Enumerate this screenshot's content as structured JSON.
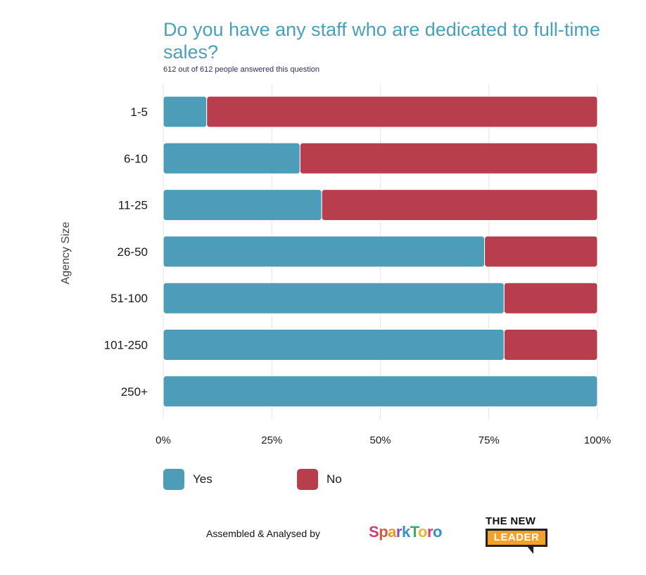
{
  "chart_data": {
    "type": "bar",
    "orientation": "horizontal",
    "stacked": true,
    "title": "Do you have any staff who are dedicated to full-time sales?",
    "subtitle": "612 out of 612 people answered this question",
    "ylabel": "Agency Size",
    "xlim": [
      0,
      100
    ],
    "x_ticks": [
      "0%",
      "25%",
      "50%",
      "75%",
      "100%"
    ],
    "grid": "vertical",
    "categories": [
      "1-5",
      "6-10",
      "11-25",
      "26-50",
      "51-100",
      "101-250",
      "250+"
    ],
    "series": [
      {
        "name": "Yes",
        "color": "#4d9db8",
        "values": [
          10,
          31.5,
          36.5,
          74,
          78.5,
          78.5,
          100
        ]
      },
      {
        "name": "No",
        "color": "#b83e4e",
        "values": [
          90,
          68.5,
          63.5,
          26,
          21.5,
          21.5,
          0
        ]
      }
    ],
    "legend_position": "bottom-left"
  },
  "footer": {
    "assembled_by": "Assembled & Analysed by",
    "logo_sparktoro": "SparkToro",
    "logo_newleader_top": "THE NEW",
    "logo_newleader_box": "LEADER"
  }
}
